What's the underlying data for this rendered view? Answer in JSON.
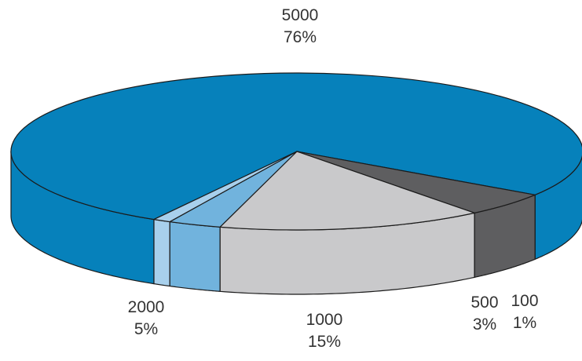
{
  "chart_data": {
    "type": "pie",
    "style": "3d",
    "slices": [
      {
        "label": "5000",
        "value": 76,
        "display": "76%",
        "color": "#0681bb"
      },
      {
        "label": "2000",
        "value": 5,
        "display": "5%",
        "color": "#5e5e60"
      },
      {
        "label": "1000",
        "value": 15,
        "display": "15%",
        "color": "#c9c9cb"
      },
      {
        "label": "500",
        "value": 3,
        "display": "3%",
        "color": "#71b3dd"
      },
      {
        "label": "100",
        "value": 1,
        "display": "1%",
        "color": "#a8d0ec"
      }
    ]
  }
}
